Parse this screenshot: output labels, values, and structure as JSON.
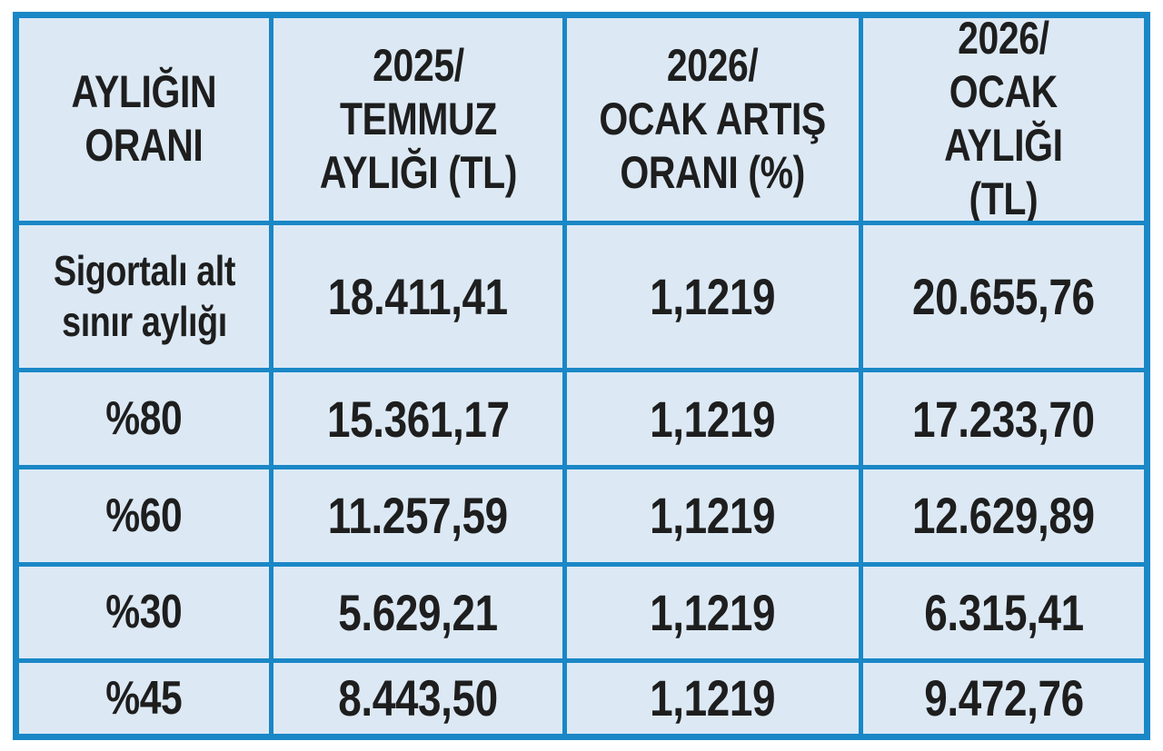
{
  "colors": {
    "border_blue": "#1a87c6",
    "cell_background": "#dce9f5",
    "text": "#1e1e1e",
    "page_background": "#ffffff"
  },
  "table": {
    "headers": [
      "AYLIĞIN\nORANI",
      "2025/\nTEMMUZ\nAYLIĞI (TL)",
      "2026/\nOCAK ARTIŞ\nORANI (%)",
      "2026/\nOCAK AYLIĞI\n(TL)"
    ],
    "rows": [
      [
        "Sigortalı alt\nsınır aylığı",
        "18.411,41",
        "1,1219",
        "20.655,76"
      ],
      [
        "%80",
        "15.361,17",
        "1,1219",
        "17.233,70"
      ],
      [
        "%60",
        "11.257,59",
        "1,1219",
        "12.629,89"
      ],
      [
        "%30",
        "5.629,21",
        "1,1219",
        "6.315,41"
      ],
      [
        "%45",
        "8.443,50",
        "1,1219",
        "9.472,76"
      ]
    ]
  },
  "chart_data": {
    "type": "table",
    "columns": [
      "AYLIĞIN ORANI",
      "2025/TEMMUZ AYLIĞI (TL)",
      "2026/OCAK ARTIŞ ORANI (%)",
      "2026/OCAK AYLIĞI (TL)"
    ],
    "rows": [
      [
        "Sigortalı alt sınır aylığı",
        "18.411,41",
        "1,1219",
        "20.655,76"
      ],
      [
        "%80",
        "15.361,17",
        "1,1219",
        "17.233,70"
      ],
      [
        "%60",
        "11.257,59",
        "1,1219",
        "12.629,89"
      ],
      [
        "%30",
        "5.629,21",
        "1,1219",
        "6.315,41"
      ],
      [
        "%45",
        "8.443,50",
        "1,1219",
        "9.472,76"
      ]
    ],
    "notes": {
      "increase_ratio_constant": "1,1219",
      "number_format": "Turkish (dot thousands, comma decimals)"
    },
    "layout": {
      "grid": true,
      "header_row": true,
      "cell_fill": "#dce9f5",
      "grid_color": "#1a87c6"
    }
  }
}
